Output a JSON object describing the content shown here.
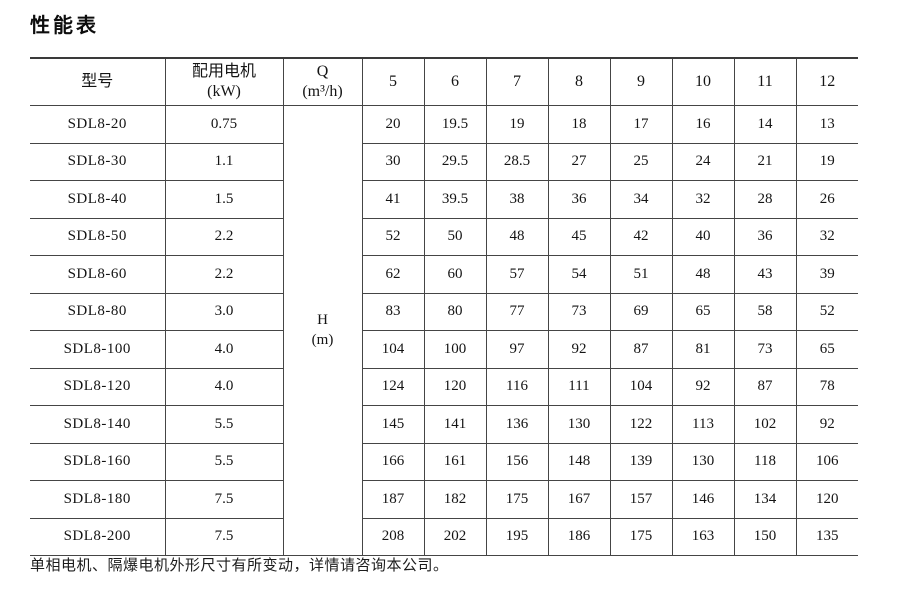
{
  "title": "性能表",
  "table": {
    "header": {
      "model": "型号",
      "motor_line1": "配用电机",
      "motor_line2": "(kW)",
      "flow_line1": "Q",
      "flow_line2": "(m³/h)",
      "q_values": [
        "5",
        "6",
        "7",
        "8",
        "9",
        "10",
        "11",
        "12"
      ]
    },
    "h_line1": "H",
    "h_line2": "(m)",
    "rows": [
      {
        "model": "SDL8-20",
        "power": "0.75",
        "values": [
          "20",
          "19.5",
          "19",
          "18",
          "17",
          "16",
          "14",
          "13"
        ]
      },
      {
        "model": "SDL8-30",
        "power": "1.1",
        "values": [
          "30",
          "29.5",
          "28.5",
          "27",
          "25",
          "24",
          "21",
          "19"
        ]
      },
      {
        "model": "SDL8-40",
        "power": "1.5",
        "values": [
          "41",
          "39.5",
          "38",
          "36",
          "34",
          "32",
          "28",
          "26"
        ]
      },
      {
        "model": "SDL8-50",
        "power": "2.2",
        "values": [
          "52",
          "50",
          "48",
          "45",
          "42",
          "40",
          "36",
          "32"
        ]
      },
      {
        "model": "SDL8-60",
        "power": "2.2",
        "values": [
          "62",
          "60",
          "57",
          "54",
          "51",
          "48",
          "43",
          "39"
        ]
      },
      {
        "model": "SDL8-80",
        "power": "3.0",
        "values": [
          "83",
          "80",
          "77",
          "73",
          "69",
          "65",
          "58",
          "52"
        ]
      },
      {
        "model": "SDL8-100",
        "power": "4.0",
        "values": [
          "104",
          "100",
          "97",
          "92",
          "87",
          "81",
          "73",
          "65"
        ]
      },
      {
        "model": "SDL8-120",
        "power": "4.0",
        "values": [
          "124",
          "120",
          "116",
          "111",
          "104",
          "92",
          "87",
          "78"
        ]
      },
      {
        "model": "SDL8-140",
        "power": "5.5",
        "values": [
          "145",
          "141",
          "136",
          "130",
          "122",
          "113",
          "102",
          "92"
        ]
      },
      {
        "model": "SDL8-160",
        "power": "5.5",
        "values": [
          "166",
          "161",
          "156",
          "148",
          "139",
          "130",
          "118",
          "106"
        ]
      },
      {
        "model": "SDL8-180",
        "power": "7.5",
        "values": [
          "187",
          "182",
          "175",
          "167",
          "157",
          "146",
          "134",
          "120"
        ]
      },
      {
        "model": "SDL8-200",
        "power": "7.5",
        "values": [
          "208",
          "202",
          "195",
          "186",
          "175",
          "163",
          "150",
          "135"
        ]
      }
    ]
  },
  "footer_note": "单相电机、隔爆电机外形尺寸有所变动，详情请咨询本公司。",
  "colors": {
    "background": "#ffffff",
    "text": "#141414",
    "border": "#454545"
  }
}
